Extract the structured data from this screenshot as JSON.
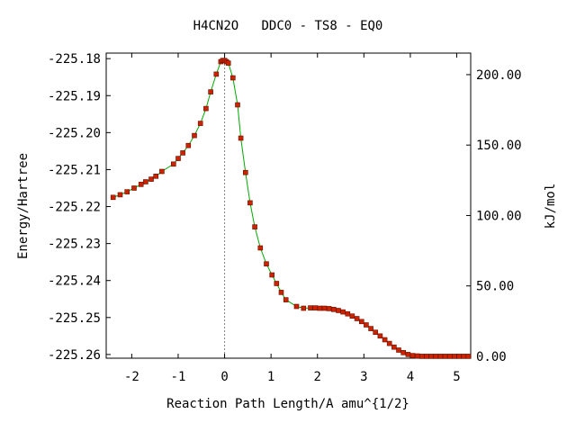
{
  "chart_data": {
    "type": "line",
    "title": "H4CN2O   DDC0 - TS8 - EQ0",
    "xlabel": "Reaction Path Length/A amu^{1/2}",
    "ylabel": "Energy/Hartree",
    "y2label": "kJ/mol",
    "xlim": [
      -2.55,
      5.3
    ],
    "ylim": [
      -225.261,
      -225.1785
    ],
    "x_ticks": [
      -2,
      -1,
      0,
      1,
      2,
      3,
      4,
      5
    ],
    "x_tick_labels": [
      "-2",
      "-1",
      "0",
      "1",
      "2",
      "3",
      "4",
      "5"
    ],
    "y_ticks": [
      -225.18,
      -225.19,
      -225.2,
      -225.21,
      -225.22,
      -225.23,
      -225.24,
      -225.25,
      -225.26
    ],
    "y_tick_labels": [
      "-225.18",
      "-225.19",
      "-225.20",
      "-225.21",
      "-225.22",
      "-225.23",
      "-225.24",
      "-225.25",
      "-225.26"
    ],
    "y2_reference_hartree": -225.2605,
    "y2_ticks": [
      0,
      50,
      100,
      150,
      200
    ],
    "y2_tick_labels": [
      "0.00",
      "50.00",
      "100.00",
      "150.00",
      "200.00"
    ],
    "ts_marker_x": 0,
    "grid": false,
    "colors": {
      "line": "#00aa00",
      "marker": "#cc2200",
      "marker_edge": "#661100",
      "ts_line": "#888888"
    },
    "series": [
      {
        "x": [
          -2.4,
          -2.25,
          -2.1,
          -1.95,
          -1.8,
          -1.7,
          -1.58,
          -1.48,
          -1.35,
          -1.1,
          -1.0,
          -0.9,
          -0.78,
          -0.65,
          -0.52,
          -0.4,
          -0.3,
          -0.18,
          -0.08,
          -0.04,
          0.0,
          0.04,
          0.08,
          0.18,
          0.28,
          0.35,
          0.45,
          0.55,
          0.65,
          0.77,
          0.9,
          1.02,
          1.12,
          1.22,
          1.32,
          1.55,
          1.7,
          1.85,
          1.95,
          2.05,
          2.15,
          2.25,
          2.35,
          2.45,
          2.55,
          2.65,
          2.75,
          2.85,
          2.95,
          3.05,
          3.15,
          3.25,
          3.35,
          3.45,
          3.55,
          3.65,
          3.75,
          3.85,
          3.95,
          4.05,
          4.15,
          4.25,
          4.35,
          4.45,
          4.55,
          4.65,
          4.75,
          4.85,
          4.95,
          5.05,
          5.15,
          5.25
        ],
        "y": [
          -225.2175,
          -225.2168,
          -225.216,
          -225.215,
          -225.214,
          -225.2133,
          -225.2126,
          -225.2118,
          -225.2105,
          -225.2085,
          -225.207,
          -225.2055,
          -225.2035,
          -225.2008,
          -225.1975,
          -225.1935,
          -225.189,
          -225.1842,
          -225.1808,
          -225.1805,
          -225.1805,
          -225.1808,
          -225.1812,
          -225.1852,
          -225.1925,
          -225.2015,
          -225.2108,
          -225.219,
          -225.2255,
          -225.2312,
          -225.2355,
          -225.2385,
          -225.2408,
          -225.2432,
          -225.2452,
          -225.247,
          -225.2475,
          -225.2474,
          -225.2474,
          -225.2475,
          -225.2475,
          -225.2476,
          -225.2478,
          -225.2481,
          -225.2485,
          -225.249,
          -225.2496,
          -225.2503,
          -225.2511,
          -225.252,
          -225.253,
          -225.254,
          -225.255,
          -225.256,
          -225.257,
          -225.258,
          -225.2588,
          -225.2595,
          -225.26,
          -225.2603,
          -225.2604,
          -225.2605,
          -225.2605,
          -225.2605,
          -225.2605,
          -225.2605,
          -225.2605,
          -225.2605,
          -225.2605,
          -225.2605,
          -225.2605,
          -225.2605
        ]
      }
    ]
  }
}
